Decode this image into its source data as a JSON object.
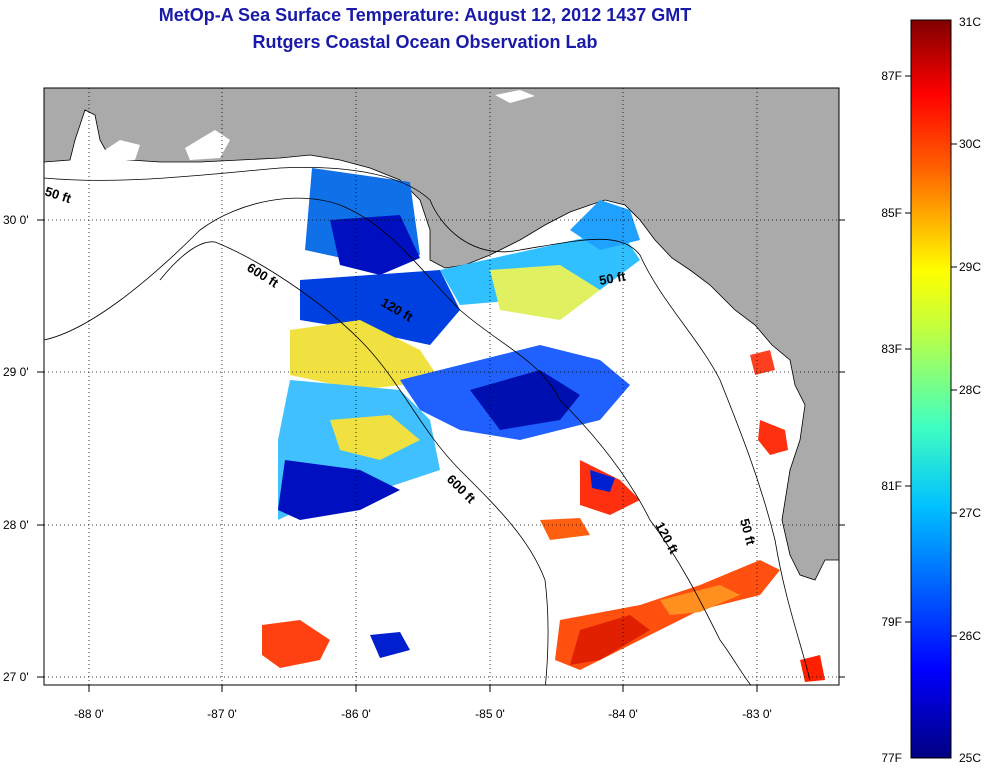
{
  "title": {
    "line1": "MetOp-A Sea Surface Temperature:  August 12, 2012 1437 GMT",
    "line2": "Rutgers Coastal Ocean Observation Lab"
  },
  "map": {
    "lon_ticks": [
      "-88 0'",
      "-87 0'",
      "-86 0'",
      "-85 0'",
      "-84 0'",
      "-83 0'"
    ],
    "lat_ticks": [
      "30 0'",
      "29 0'",
      "28 0'",
      "27 0'"
    ],
    "contours": [
      "50 ft",
      "600 ft",
      "120 ft",
      "50 ft",
      "600 ft",
      "120 ft",
      "50 ft"
    ],
    "colors": {
      "land": "#aaaaaa",
      "ocean_nodata": "#ffffff",
      "coastline": "#000000"
    }
  },
  "colorbar": {
    "celsius_labels": [
      "31C",
      "30C",
      "29C",
      "28C",
      "27C",
      "26C",
      "25C"
    ],
    "fahrenheit_labels": [
      "87F",
      "85F",
      "83F",
      "81F",
      "79F",
      "77F"
    ],
    "colors": [
      "#000080",
      "#0000ff",
      "#0080ff",
      "#00ffff",
      "#80ff80",
      "#ffff00",
      "#ff8000",
      "#ff0000",
      "#800000"
    ]
  }
}
